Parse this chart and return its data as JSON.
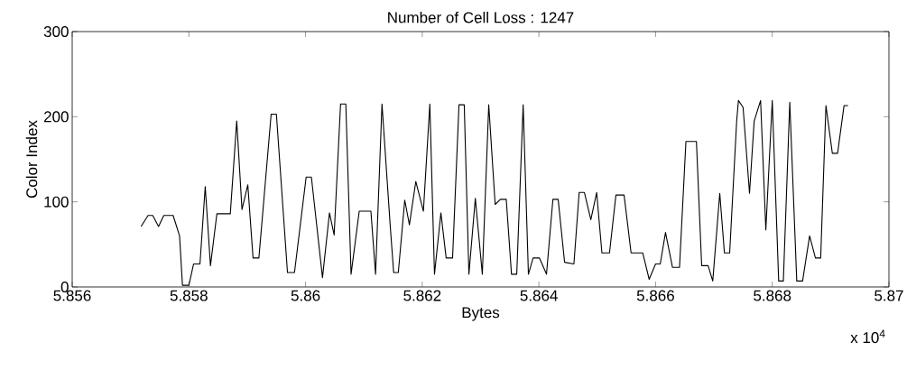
{
  "chart_data": {
    "type": "line",
    "title": "Number of Cell Loss : 1247",
    "xlabel": "Bytes",
    "ylabel": "Color Index",
    "annotations": [
      "x 10$^{4}$"
    ],
    "xlim": [
      5.856,
      5.87
    ],
    "ylim": [
      0,
      300
    ],
    "xticks": [
      5.856,
      5.858,
      5.86,
      5.862,
      5.864,
      5.866,
      5.868,
      5.87
    ],
    "yticks": [
      0,
      100,
      200,
      300
    ],
    "marker": "none",
    "line_style": "solid",
    "series": [
      {
        "color": "#000000",
        "x": [
          5.85718,
          5.8573,
          5.85738,
          5.85748,
          5.85757,
          5.85773,
          5.85784,
          5.85789,
          5.858,
          5.85808,
          5.85819,
          5.85828,
          5.85837,
          5.85848,
          5.85871,
          5.85882,
          5.85891,
          5.85901,
          5.8591,
          5.8592,
          5.85941,
          5.8595,
          5.85969,
          5.85981,
          5.86001,
          5.8601,
          5.86029,
          5.86041,
          5.86049,
          5.8606,
          5.86069,
          5.86078,
          5.86092,
          5.86112,
          5.8612,
          5.86131,
          5.86145,
          5.86151,
          5.86159,
          5.8617,
          5.86178,
          5.86189,
          5.86202,
          5.86213,
          5.86221,
          5.86232,
          5.86241,
          5.86252,
          5.86263,
          5.86272,
          5.8628,
          5.86291,
          5.86303,
          5.86314,
          5.86325,
          5.86334,
          5.86344,
          5.86353,
          5.86362,
          5.86373,
          5.86382,
          5.8639,
          5.86401,
          5.86413,
          5.86424,
          5.86433,
          5.86444,
          5.8646,
          5.86469,
          5.86478,
          5.86489,
          5.86499,
          5.86508,
          5.86521,
          5.86532,
          5.86546,
          5.86558,
          5.86578,
          5.86589,
          5.866,
          5.86608,
          5.86617,
          5.86629,
          5.86641,
          5.86652,
          5.8667,
          5.86679,
          5.8669,
          5.86698,
          5.8671,
          5.86718,
          5.86727,
          5.86739,
          5.86742,
          5.8675,
          5.86761,
          5.86769,
          5.8678,
          5.86789,
          5.868,
          5.86811,
          5.86819,
          5.8683,
          5.86842,
          5.86852,
          5.86864,
          5.86874,
          5.86883,
          5.86892,
          5.86903,
          5.86912,
          5.86923,
          5.8693
        ],
        "values": [
          71,
          84,
          84,
          71,
          84,
          84,
          60,
          2,
          2,
          27,
          27,
          118,
          25,
          86,
          86,
          195,
          91,
          120,
          34,
          34,
          203,
          203,
          17,
          17,
          129,
          129,
          11,
          87,
          61,
          215,
          215,
          15,
          89,
          89,
          15,
          215,
          73,
          17,
          17,
          102,
          73,
          124,
          89,
          215,
          15,
          87,
          34,
          34,
          214,
          214,
          15,
          104,
          15,
          214,
          97,
          103,
          103,
          15,
          15,
          214,
          15,
          34,
          34,
          15,
          103,
          103,
          29,
          27,
          111,
          111,
          79,
          111,
          40,
          40,
          108,
          108,
          40,
          40,
          9,
          27,
          27,
          64,
          23,
          23,
          171,
          171,
          25,
          25,
          7,
          110,
          40,
          40,
          195,
          219,
          211,
          110,
          195,
          219,
          67,
          219,
          7,
          7,
          217,
          7,
          7,
          60,
          34,
          34,
          213,
          157,
          157,
          213,
          213
        ]
      }
    ]
  }
}
